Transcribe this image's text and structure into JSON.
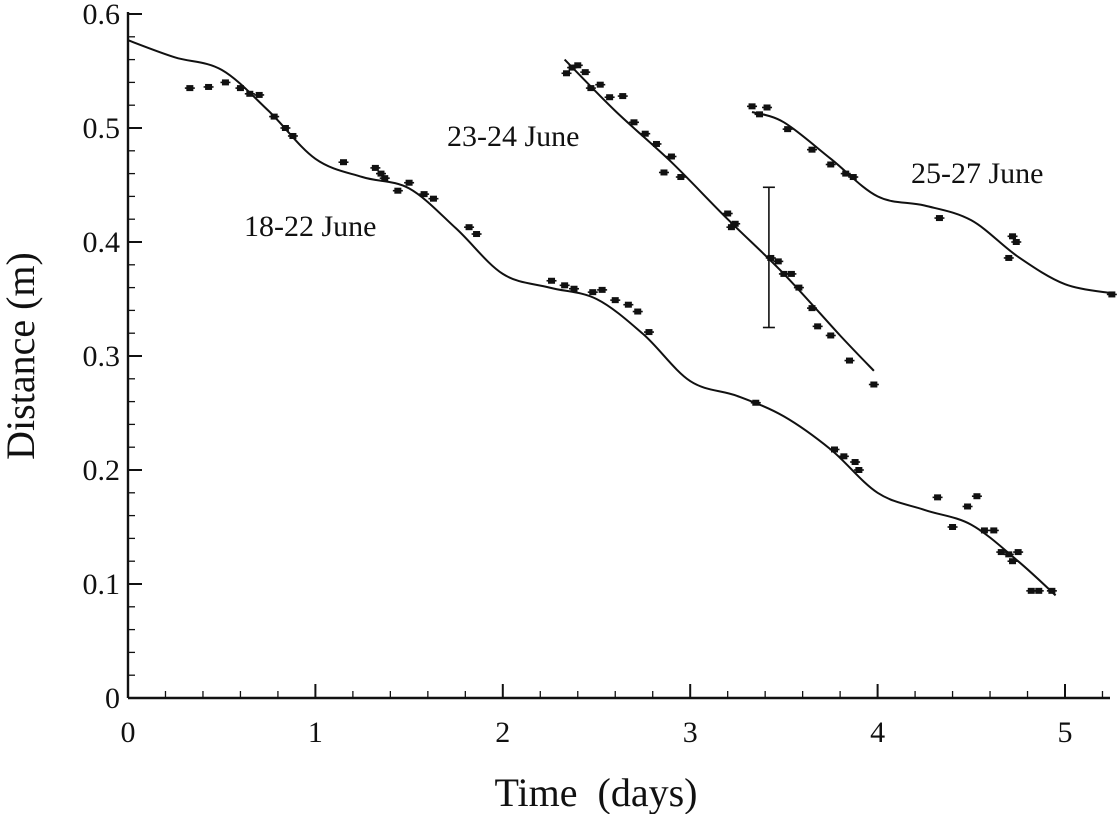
{
  "chart_data": {
    "type": "scatter",
    "xlabel": "Time  (days)",
    "ylabel": "Distance (m)",
    "xlim": [
      0,
      5.25
    ],
    "ylim": [
      0,
      0.6
    ],
    "x_ticks": [
      "0",
      "1",
      "2",
      "3",
      "4",
      "5"
    ],
    "y_ticks": [
      "0",
      "0.1",
      "0.2",
      "0.3",
      "0.4",
      "0.5",
      "0.6"
    ],
    "grid": false,
    "legend": "none",
    "series": [
      {
        "name": "18-22 June",
        "points": [
          [
            0.33,
            0.535
          ],
          [
            0.43,
            0.536
          ],
          [
            0.52,
            0.54
          ],
          [
            0.6,
            0.535
          ],
          [
            0.65,
            0.53
          ],
          [
            0.7,
            0.529
          ],
          [
            0.78,
            0.51
          ],
          [
            0.84,
            0.5
          ],
          [
            0.88,
            0.493
          ],
          [
            1.15,
            0.47
          ],
          [
            1.32,
            0.465
          ],
          [
            1.35,
            0.46
          ],
          [
            1.37,
            0.456
          ],
          [
            1.44,
            0.445
          ],
          [
            1.5,
            0.452
          ],
          [
            1.58,
            0.442
          ],
          [
            1.63,
            0.438
          ],
          [
            1.82,
            0.413
          ],
          [
            1.86,
            0.407
          ],
          [
            2.26,
            0.366
          ],
          [
            2.33,
            0.362
          ],
          [
            2.38,
            0.359
          ],
          [
            2.48,
            0.356
          ],
          [
            2.53,
            0.358
          ],
          [
            2.6,
            0.349
          ],
          [
            2.67,
            0.345
          ],
          [
            2.72,
            0.339
          ],
          [
            2.78,
            0.321
          ],
          [
            3.35,
            0.259
          ],
          [
            3.77,
            0.218
          ],
          [
            3.82,
            0.212
          ],
          [
            3.88,
            0.207
          ],
          [
            3.9,
            0.2
          ],
          [
            4.32,
            0.176
          ],
          [
            4.4,
            0.15
          ],
          [
            4.48,
            0.168
          ],
          [
            4.53,
            0.177
          ],
          [
            4.57,
            0.147
          ],
          [
            4.62,
            0.147
          ],
          [
            4.66,
            0.128
          ],
          [
            4.7,
            0.126
          ],
          [
            4.72,
            0.12
          ],
          [
            4.75,
            0.128
          ],
          [
            4.82,
            0.094
          ],
          [
            4.86,
            0.094
          ],
          [
            4.93,
            0.094
          ]
        ],
        "fit_x": [
          0,
          0.25,
          0.5,
          0.75,
          1,
          1.25,
          1.5,
          1.75,
          2,
          2.25,
          2.5,
          2.75,
          3,
          3.25,
          3.5,
          3.75,
          4,
          4.25,
          4.5,
          4.75,
          4.95
        ],
        "fit_y": [
          0.577,
          0.562,
          0.551,
          0.515,
          0.473,
          0.457,
          0.447,
          0.412,
          0.372,
          0.36,
          0.35,
          0.319,
          0.278,
          0.265,
          0.247,
          0.218,
          0.18,
          0.165,
          0.152,
          0.12,
          0.09
        ]
      },
      {
        "name": "23-24 June",
        "points": [
          [
            2.34,
            0.548
          ],
          [
            2.37,
            0.553
          ],
          [
            2.4,
            0.555
          ],
          [
            2.44,
            0.549
          ],
          [
            2.47,
            0.535
          ],
          [
            2.52,
            0.538
          ],
          [
            2.57,
            0.527
          ],
          [
            2.64,
            0.528
          ],
          [
            2.7,
            0.505
          ],
          [
            2.76,
            0.495
          ],
          [
            2.82,
            0.486
          ],
          [
            2.86,
            0.461
          ],
          [
            2.9,
            0.475
          ],
          [
            2.95,
            0.457
          ],
          [
            3.2,
            0.425
          ],
          [
            3.22,
            0.413
          ],
          [
            3.24,
            0.416
          ],
          [
            3.43,
            0.386
          ],
          [
            3.47,
            0.383
          ],
          [
            3.5,
            0.372
          ],
          [
            3.54,
            0.372
          ],
          [
            3.58,
            0.36
          ],
          [
            3.65,
            0.342
          ],
          [
            3.68,
            0.326
          ],
          [
            3.75,
            0.318
          ],
          [
            3.85,
            0.296
          ],
          [
            3.98,
            0.275
          ]
        ],
        "error_bars": [
          {
            "x": 3.42,
            "y": 0.387,
            "low": 0.325,
            "high": 0.448
          }
        ],
        "fit_x": [
          2.33,
          2.6,
          2.9,
          3.2,
          3.5,
          3.8,
          3.98
        ],
        "fit_y": [
          0.56,
          0.515,
          0.47,
          0.42,
          0.372,
          0.318,
          0.287
        ]
      },
      {
        "name": "25-27 June",
        "points": [
          [
            3.33,
            0.519
          ],
          [
            3.37,
            0.512
          ],
          [
            3.41,
            0.518
          ],
          [
            3.52,
            0.499
          ],
          [
            3.65,
            0.481
          ],
          [
            3.75,
            0.468
          ],
          [
            3.83,
            0.46
          ],
          [
            3.87,
            0.457
          ],
          [
            4.33,
            0.421
          ],
          [
            4.7,
            0.386
          ],
          [
            4.72,
            0.405
          ],
          [
            4.74,
            0.4
          ],
          [
            5.25,
            0.354
          ]
        ],
        "fit_x": [
          3.33,
          3.5,
          3.75,
          4.0,
          4.25,
          4.5,
          4.75,
          5.0,
          5.25
        ],
        "fit_y": [
          0.514,
          0.505,
          0.473,
          0.44,
          0.432,
          0.419,
          0.387,
          0.363,
          0.355
        ]
      }
    ]
  }
}
